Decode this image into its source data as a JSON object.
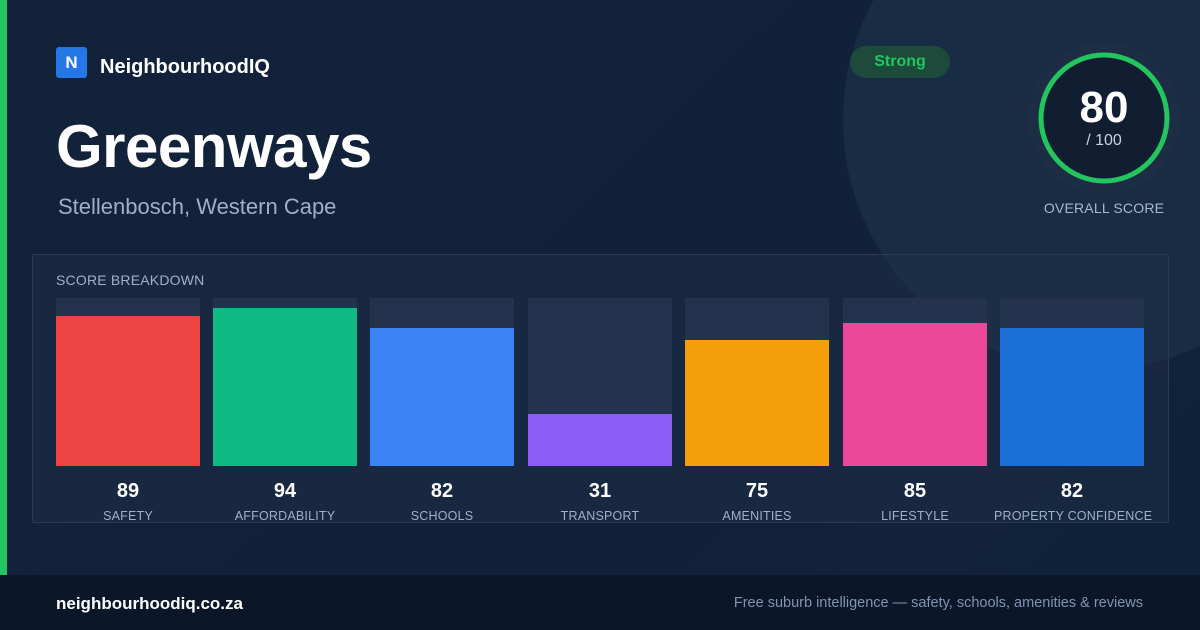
{
  "brand": {
    "logo_letter": "N",
    "name": "NeighbourhoodIQ",
    "logo_color": "#2677e6"
  },
  "suburb": {
    "name": "Greenways",
    "location": "Stellenbosch, Western Cape"
  },
  "badge": {
    "label": "Strong",
    "color": "#22c55e"
  },
  "overall": {
    "score": "80",
    "max_label": "/ 100",
    "caption": "OVERALL SCORE",
    "fraction": 0.8,
    "ring_color": "#22c55e"
  },
  "breakdown": {
    "title": "SCORE BREAKDOWN",
    "items": [
      {
        "label": "SAFETY",
        "value": "89",
        "score": 89,
        "color": "#ef4444"
      },
      {
        "label": "AFFORDABILITY",
        "value": "94",
        "score": 94,
        "color": "#10b981"
      },
      {
        "label": "SCHOOLS",
        "value": "82",
        "score": 82,
        "color": "#3b82f6"
      },
      {
        "label": "TRANSPORT",
        "value": "31",
        "score": 31,
        "color": "#8b5cf6"
      },
      {
        "label": "AMENITIES",
        "value": "75",
        "score": 75,
        "color": "#f59e0b"
      },
      {
        "label": "LIFESTYLE",
        "value": "85",
        "score": 85,
        "color": "#ec4899"
      },
      {
        "label": "PROPERTY CONFIDENCE",
        "value": "82",
        "score": 82,
        "color": "#1d6fd8"
      }
    ]
  },
  "footer": {
    "domain": "neighbourhoodiq.co.za",
    "tagline": "Free suburb intelligence — safety, schools, amenities & reviews"
  }
}
